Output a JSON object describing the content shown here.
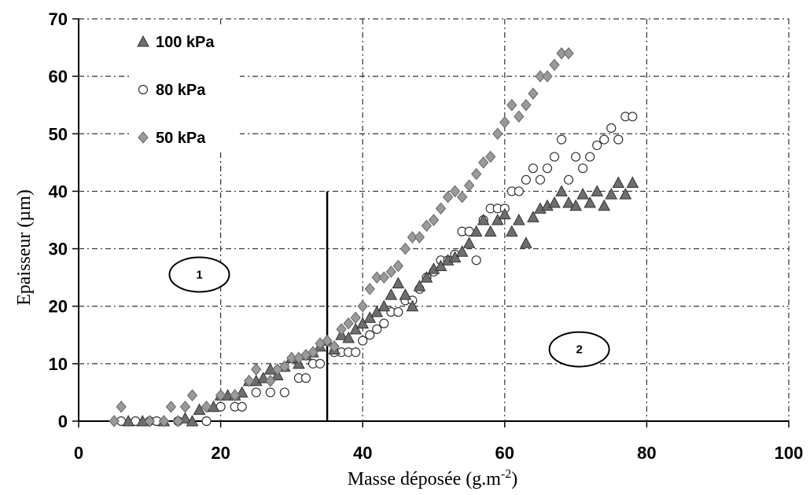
{
  "chart_data": {
    "type": "scatter",
    "title": "",
    "xlabel": "Masse déposée (g.m",
    "xlabel_sup": "-2",
    "xlabel_end": ")",
    "ylabel": "Epaisseur (µm)",
    "xlim": [
      0,
      100
    ],
    "ylim": [
      0,
      70
    ],
    "xticks": [
      "0",
      "20",
      "40",
      "60",
      "80",
      "100"
    ],
    "yticks": [
      "0",
      "10",
      "20",
      "30",
      "40",
      "50",
      "60",
      "70"
    ],
    "grid": true,
    "legend_position": "top-left",
    "vertical_line_x": 35,
    "vertical_line_ymax": 40,
    "regions": [
      {
        "label": "1",
        "x": 17,
        "y": 25.5
      },
      {
        "label": "2",
        "x": 70.5,
        "y": 12.5
      }
    ],
    "series": [
      {
        "name": "100 kPa",
        "marker": "triangle",
        "color": "#6e6e6e",
        "points": [
          [
            7,
            0
          ],
          [
            9,
            0
          ],
          [
            12,
            0
          ],
          [
            15,
            0.5
          ],
          [
            16,
            0
          ],
          [
            17,
            2
          ],
          [
            19,
            2.5
          ],
          [
            20,
            4.5
          ],
          [
            21,
            4.5
          ],
          [
            22,
            4.5
          ],
          [
            23,
            5
          ],
          [
            24,
            7
          ],
          [
            25,
            7
          ],
          [
            26,
            7.5
          ],
          [
            27,
            9
          ],
          [
            28,
            8
          ],
          [
            29,
            9.5
          ],
          [
            30,
            11
          ],
          [
            31,
            10
          ],
          [
            32,
            11.5
          ],
          [
            33,
            12
          ],
          [
            34,
            13
          ],
          [
            35,
            14
          ],
          [
            36,
            12.5
          ],
          [
            37,
            15
          ],
          [
            38,
            14.5
          ],
          [
            39,
            16
          ],
          [
            40,
            17
          ],
          [
            41,
            18
          ],
          [
            42,
            19
          ],
          [
            43,
            20
          ],
          [
            44,
            22
          ],
          [
            45,
            24
          ],
          [
            46,
            22
          ],
          [
            47,
            20
          ],
          [
            48,
            23.5
          ],
          [
            49,
            25
          ],
          [
            50,
            26.5
          ],
          [
            51,
            27
          ],
          [
            52,
            28
          ],
          [
            53,
            28.5
          ],
          [
            54,
            29.5
          ],
          [
            55,
            31
          ],
          [
            56,
            33
          ],
          [
            57,
            35
          ],
          [
            58,
            33
          ],
          [
            59,
            35
          ],
          [
            60,
            36
          ],
          [
            61,
            33
          ],
          [
            62,
            35
          ],
          [
            63,
            31
          ],
          [
            64,
            35.5
          ],
          [
            65,
            37
          ],
          [
            66,
            37.5
          ],
          [
            67,
            38
          ],
          [
            68,
            40
          ],
          [
            69,
            38
          ],
          [
            70,
            37.5
          ],
          [
            71,
            39.5
          ],
          [
            72,
            38
          ],
          [
            73,
            40
          ],
          [
            74,
            37.5
          ],
          [
            75,
            39.5
          ],
          [
            76,
            41.5
          ],
          [
            77,
            39.5
          ],
          [
            78,
            41.5
          ]
        ]
      },
      {
        "name": "80 kPa",
        "marker": "circle",
        "color": "#ffffff",
        "points": [
          [
            6,
            0
          ],
          [
            8,
            0
          ],
          [
            10,
            0
          ],
          [
            11,
            0
          ],
          [
            14,
            0
          ],
          [
            18,
            0
          ],
          [
            20,
            2.5
          ],
          [
            22,
            2.5
          ],
          [
            23,
            2.5
          ],
          [
            25,
            5
          ],
          [
            27,
            5
          ],
          [
            29,
            5
          ],
          [
            31,
            7.5
          ],
          [
            32,
            7.5
          ],
          [
            33,
            10
          ],
          [
            34,
            10
          ],
          [
            36,
            12
          ],
          [
            37,
            12
          ],
          [
            38,
            12
          ],
          [
            39,
            12
          ],
          [
            40,
            14
          ],
          [
            41,
            15
          ],
          [
            42,
            16
          ],
          [
            43,
            17
          ],
          [
            44,
            19
          ],
          [
            45,
            19
          ],
          [
            46,
            21
          ],
          [
            47,
            21
          ],
          [
            48,
            23
          ],
          [
            49,
            25
          ],
          [
            50,
            26
          ],
          [
            51,
            28
          ],
          [
            52,
            28
          ],
          [
            53,
            29
          ],
          [
            54,
            33
          ],
          [
            55,
            33
          ],
          [
            56,
            28
          ],
          [
            57,
            35
          ],
          [
            58,
            37
          ],
          [
            59,
            37
          ],
          [
            60,
            37
          ],
          [
            61,
            40
          ],
          [
            62,
            40
          ],
          [
            63,
            42
          ],
          [
            64,
            44
          ],
          [
            65,
            42
          ],
          [
            66,
            44
          ],
          [
            67,
            46
          ],
          [
            68,
            49
          ],
          [
            69,
            42
          ],
          [
            70,
            46
          ],
          [
            71,
            44
          ],
          [
            72,
            46
          ],
          [
            73,
            48
          ],
          [
            74,
            49
          ],
          [
            75,
            51
          ],
          [
            76,
            49
          ],
          [
            77,
            53
          ],
          [
            78,
            53
          ]
        ]
      },
      {
        "name": "50 kPa",
        "marker": "diamond",
        "color": "#9a9a9a",
        "points": [
          [
            5,
            0
          ],
          [
            6,
            2.5
          ],
          [
            10,
            0
          ],
          [
            12,
            0
          ],
          [
            13,
            2.5
          ],
          [
            14,
            0
          ],
          [
            15,
            2.5
          ],
          [
            16,
            4.5
          ],
          [
            18,
            2.5
          ],
          [
            20,
            4.5
          ],
          [
            22,
            4.5
          ],
          [
            24,
            7
          ],
          [
            25,
            9
          ],
          [
            27,
            7
          ],
          [
            28,
            9
          ],
          [
            29,
            9.5
          ],
          [
            30,
            11
          ],
          [
            31,
            11
          ],
          [
            32,
            11.5
          ],
          [
            33,
            12
          ],
          [
            34,
            13.5
          ],
          [
            35,
            14
          ],
          [
            36,
            13
          ],
          [
            37,
            16
          ],
          [
            38,
            17
          ],
          [
            39,
            18
          ],
          [
            40,
            20
          ],
          [
            41,
            23
          ],
          [
            42,
            25
          ],
          [
            43,
            25
          ],
          [
            44,
            26
          ],
          [
            45,
            27
          ],
          [
            46,
            30
          ],
          [
            47,
            32
          ],
          [
            48,
            32
          ],
          [
            49,
            34
          ],
          [
            50,
            35
          ],
          [
            51,
            37
          ],
          [
            52,
            39
          ],
          [
            53,
            40
          ],
          [
            54,
            39
          ],
          [
            55,
            41
          ],
          [
            56,
            43
          ],
          [
            57,
            45
          ],
          [
            58,
            46
          ],
          [
            59,
            50
          ],
          [
            60,
            52
          ],
          [
            61,
            55
          ],
          [
            62,
            53
          ],
          [
            63,
            55
          ],
          [
            64,
            57
          ],
          [
            65,
            60
          ],
          [
            66,
            60
          ],
          [
            67,
            62
          ],
          [
            68,
            64
          ],
          [
            69,
            64
          ]
        ]
      }
    ]
  }
}
